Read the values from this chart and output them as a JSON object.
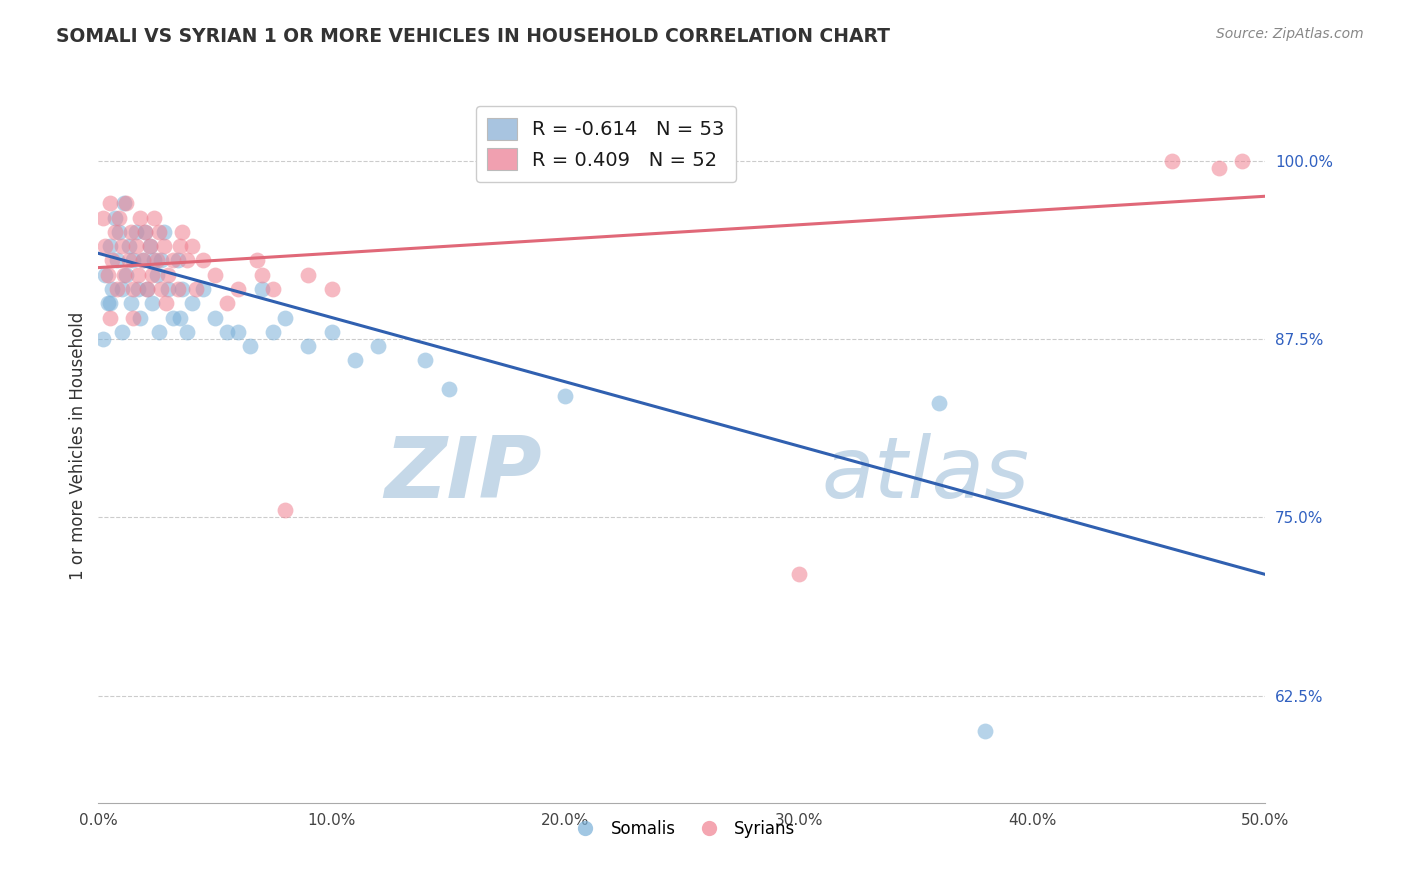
{
  "title": "SOMALI VS SYRIAN 1 OR MORE VEHICLES IN HOUSEHOLD CORRELATION CHART",
  "source_text": "Source: ZipAtlas.com",
  "ylabel": "1 or more Vehicles in Household",
  "x_tick_labels": [
    "0.0%",
    "10.0%",
    "20.0%",
    "30.0%",
    "40.0%",
    "50.0%"
  ],
  "x_tick_vals": [
    0.0,
    10.0,
    20.0,
    30.0,
    40.0,
    50.0
  ],
  "y_tick_labels": [
    "62.5%",
    "75.0%",
    "87.5%",
    "100.0%"
  ],
  "y_tick_vals": [
    62.5,
    75.0,
    87.5,
    100.0
  ],
  "xlim": [
    0.0,
    50.0
  ],
  "ylim": [
    55.0,
    105.0
  ],
  "legend_items": [
    {
      "color": "#a8c4e0",
      "label_r": "R = ",
      "label_r_val": "-0.614",
      "label_n": "  N = ",
      "label_n_val": "53"
    },
    {
      "color": "#f0a0b0",
      "label_r": "R = ",
      "label_r_val": "0.409",
      "label_n": "  N = ",
      "label_n_val": "52"
    }
  ],
  "somali_color": "#7ab0d8",
  "syrian_color": "#f08090",
  "somali_line_color": "#3060b0",
  "syrian_line_color": "#e06878",
  "watermark_zip": "ZIP",
  "watermark_atlas": "atlas",
  "watermark_color_zip": "#c5d8e8",
  "watermark_color_atlas": "#c5d8e8",
  "legend_label_somali": "Somalis",
  "legend_label_syrian": "Syrians",
  "somali_line_x0": 0.0,
  "somali_line_y0": 93.5,
  "somali_line_x1": 50.0,
  "somali_line_y1": 71.0,
  "syrian_line_x0": 0.0,
  "syrian_line_y0": 92.5,
  "syrian_line_x1": 50.0,
  "syrian_line_y1": 97.5,
  "somali_x": [
    0.3,
    0.5,
    0.5,
    0.7,
    0.8,
    0.9,
    1.0,
    1.0,
    1.1,
    1.2,
    1.3,
    1.4,
    1.5,
    1.6,
    1.7,
    1.8,
    1.9,
    2.0,
    2.1,
    2.2,
    2.3,
    2.4,
    2.5,
    2.6,
    2.7,
    2.8,
    3.0,
    3.2,
    3.4,
    3.6,
    3.8,
    4.0,
    4.5,
    5.0,
    5.5,
    6.0,
    6.5,
    7.0,
    7.5,
    8.0,
    9.0,
    10.0,
    11.0,
    12.0,
    14.0,
    15.0,
    0.2,
    0.4,
    0.6,
    3.5,
    20.0,
    38.0,
    36.0
  ],
  "somali_y": [
    92.0,
    94.0,
    90.0,
    96.0,
    93.0,
    95.0,
    91.0,
    88.0,
    97.0,
    92.0,
    94.0,
    90.0,
    93.0,
    95.0,
    91.0,
    89.0,
    93.0,
    95.0,
    91.0,
    94.0,
    90.0,
    93.0,
    92.0,
    88.0,
    93.0,
    95.0,
    91.0,
    89.0,
    93.0,
    91.0,
    88.0,
    90.0,
    91.0,
    89.0,
    88.0,
    88.0,
    87.0,
    91.0,
    88.0,
    89.0,
    87.0,
    88.0,
    86.0,
    87.0,
    86.0,
    84.0,
    87.5,
    90.0,
    91.0,
    89.0,
    83.5,
    60.0,
    83.0
  ],
  "syrian_x": [
    0.2,
    0.3,
    0.4,
    0.5,
    0.6,
    0.7,
    0.8,
    0.9,
    1.0,
    1.1,
    1.2,
    1.3,
    1.4,
    1.5,
    1.6,
    1.7,
    1.8,
    1.9,
    2.0,
    2.1,
    2.2,
    2.3,
    2.4,
    2.5,
    2.6,
    2.7,
    2.8,
    3.0,
    3.2,
    3.4,
    3.6,
    3.8,
    4.0,
    4.5,
    5.0,
    6.0,
    7.0,
    3.5,
    2.9,
    0.5,
    1.5,
    7.5,
    5.5,
    4.2,
    6.8,
    8.0,
    9.0,
    10.0,
    30.0,
    46.0,
    48.0,
    49.0
  ],
  "syrian_y": [
    96.0,
    94.0,
    92.0,
    97.0,
    93.0,
    95.0,
    91.0,
    96.0,
    94.0,
    92.0,
    97.0,
    93.0,
    95.0,
    91.0,
    94.0,
    92.0,
    96.0,
    93.0,
    95.0,
    91.0,
    94.0,
    92.0,
    96.0,
    93.0,
    95.0,
    91.0,
    94.0,
    92.0,
    93.0,
    91.0,
    95.0,
    93.0,
    94.0,
    93.0,
    92.0,
    91.0,
    92.0,
    94.0,
    90.0,
    89.0,
    89.0,
    91.0,
    90.0,
    91.0,
    93.0,
    75.5,
    92.0,
    91.0,
    71.0,
    100.0,
    99.5,
    100.0
  ]
}
